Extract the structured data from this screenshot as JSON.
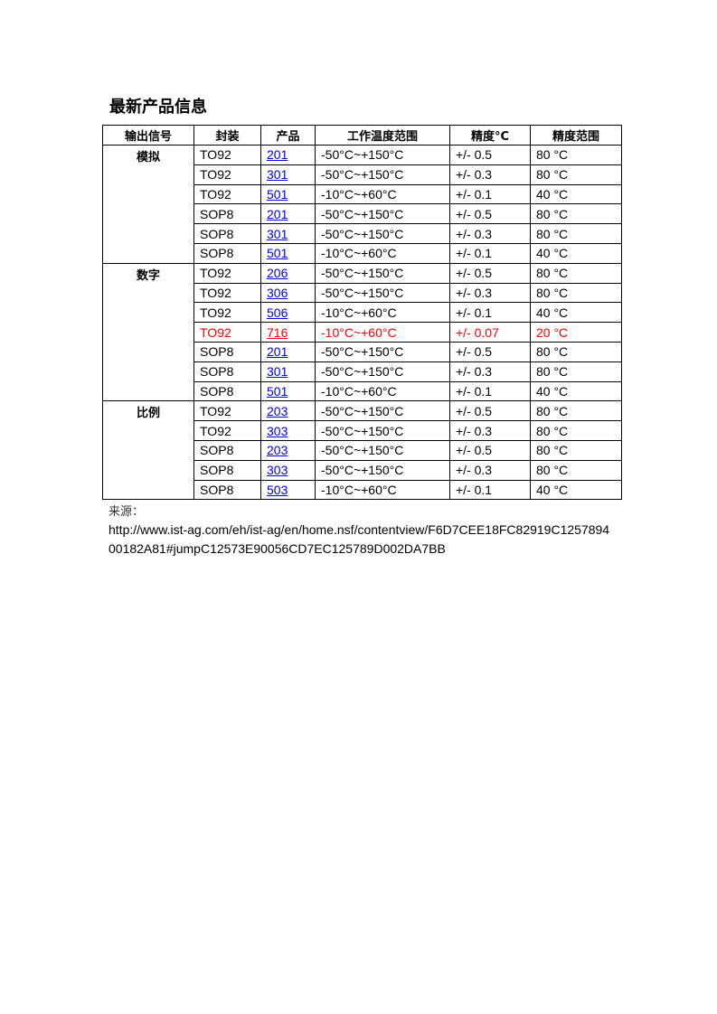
{
  "title": "最新产品信息",
  "table": {
    "headers": [
      "输出信号",
      "封装",
      "产品",
      "工作温度范围",
      "精度°C",
      "精度范围"
    ],
    "groups": [
      {
        "signal": "模拟",
        "rows": [
          [
            "TO92",
            "201",
            "-50°C~+150°C",
            "+/- 0.5",
            "80 °C"
          ],
          [
            "TO92",
            "301",
            "-50°C~+150°C",
            "+/- 0.3",
            "80 °C"
          ],
          [
            "TO92",
            "501",
            "-10°C~+60°C",
            "+/- 0.1",
            "40 °C"
          ],
          [
            "SOP8",
            "201",
            "-50°C~+150°C",
            "+/- 0.5",
            "80 °C"
          ],
          [
            "SOP8",
            "301",
            "-50°C~+150°C",
            "+/- 0.3",
            "80 °C"
          ],
          [
            "SOP8",
            "501",
            "-10°C~+60°C",
            "+/- 0.1",
            "40 °C"
          ]
        ]
      },
      {
        "signal": "数字",
        "rows": [
          [
            "TO92",
            "206",
            "-50°C~+150°C",
            "+/- 0.5",
            "80 °C"
          ],
          [
            "TO92",
            "306",
            "-50°C~+150°C",
            "+/- 0.3",
            "80 °C"
          ],
          [
            "TO92",
            "506",
            "-10°C~+60°C",
            "+/- 0.1",
            "40 °C"
          ],
          [
            "TO92",
            "716",
            "-10°C~+60°C",
            "+/- 0.07",
            "20 °C"
          ],
          [
            "SOP8",
            "201",
            "-50°C~+150°C",
            "+/- 0.5",
            "80 °C"
          ],
          [
            "SOP8",
            "301",
            "-50°C~+150°C",
            "+/- 0.3",
            "80 °C"
          ],
          [
            "SOP8",
            "501",
            "-10°C~+60°C",
            "+/- 0.1",
            "40 °C"
          ]
        ]
      },
      {
        "signal": "比例",
        "rows": [
          [
            "TO92",
            "203",
            "-50°C~+150°C",
            "+/- 0.5",
            "80 °C"
          ],
          [
            "TO92",
            "303",
            "-50°C~+150°C",
            "+/- 0.3",
            "80 °C"
          ],
          [
            "SOP8",
            "203",
            "-50°C~+150°C",
            "+/- 0.5",
            "80 °C"
          ],
          [
            "SOP8",
            "303",
            "-50°C~+150°C",
            "+/- 0.3",
            "80 °C"
          ],
          [
            "SOP8",
            "503",
            "-10°C~+60°C",
            "+/- 0.1",
            "40 °C"
          ]
        ]
      }
    ],
    "highlighted_product": "716",
    "highlight_color": "#ff0000",
    "link_color": "#0000ee"
  },
  "source": {
    "label": "来源：",
    "url": "http://www.ist-ag.com/eh/ist-ag/en/home.nsf/contentview/F6D7CEE18FC82919C125789400182A81#jumpC12573E90056CD7EC125789D002DA7BB"
  }
}
